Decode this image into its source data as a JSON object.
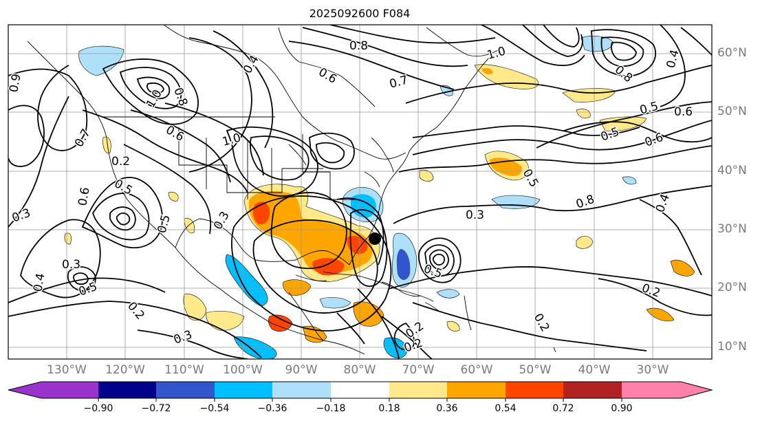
{
  "title": "2025092600 F084",
  "lat_labels": [
    "60°N",
    "50°N",
    "40°N",
    "30°N",
    "20°N",
    "10°N"
  ],
  "lon_labels": [
    "130°W",
    "120°W",
    "110°W",
    "100°W",
    "90°W",
    "80°W",
    "70°W",
    "60°W",
    "50°W",
    "40°W",
    "30°W"
  ],
  "colorbar": {
    "ticks": [
      "−0.90",
      "−0.72",
      "−0.54",
      "−0.36",
      "−0.18",
      "0.18",
      "0.36",
      "0.54",
      "0.72",
      "0.90"
    ],
    "colors": [
      "#9933cc",
      "#00008b",
      "#3355cc",
      "#00bfff",
      "#aee0fa",
      "#ffffff",
      "#ffe98a",
      "#ffa500",
      "#ff4500",
      "#b22222",
      "#ff80aa"
    ]
  },
  "contour_labels": [
    "0.8",
    "0.6",
    "0.7",
    "1.0",
    "0.8",
    "0.4",
    "0.9",
    "1.0",
    "0.6",
    "0.7",
    "0.5",
    "0.8",
    "0.5",
    "0.6",
    "0.8",
    "0.4",
    "1.0",
    "0.6",
    "0.5",
    "0.2",
    "0.6",
    "0.3",
    "0.3",
    "0.2",
    "0.4",
    "0.5",
    "0.2",
    "0.3",
    "0.5",
    "0.3",
    "0.5",
    "0.4",
    "0.5",
    "0.2",
    "0.2",
    "0.2",
    "0.3"
  ]
}
